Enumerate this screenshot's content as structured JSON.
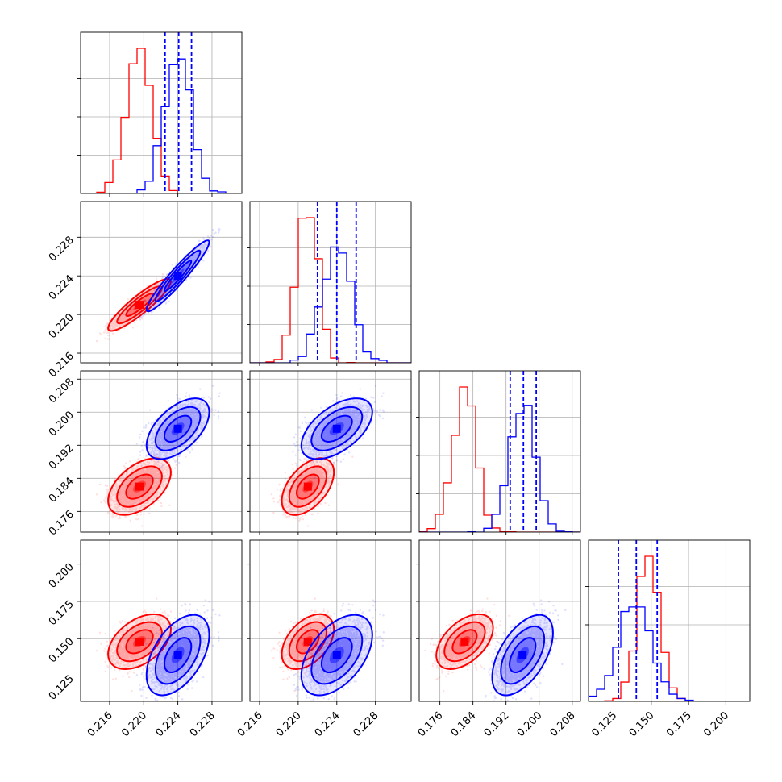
{
  "chart_data": {
    "type": "corner",
    "parameters": [
      {
        "ticks": [
          "0.216",
          "0.220",
          "0.224",
          "0.228"
        ],
        "range": [
          0.2126,
          0.2315
        ]
      },
      {
        "ticks": [
          "0.216",
          "0.220",
          "0.224",
          "0.228"
        ],
        "range": [
          0.215,
          0.2317
        ]
      },
      {
        "ticks": [
          "0.176",
          "0.184",
          "0.192",
          "0.200",
          "0.208"
        ],
        "range": [
          0.171,
          0.21
        ]
      },
      {
        "ticks": [
          "0.125",
          "0.150",
          "0.175",
          "0.200"
        ],
        "range": [
          0.108,
          0.216
        ]
      }
    ],
    "series": [
      {
        "color": "#ff0000",
        "means": [
          0.2195,
          0.221,
          0.182,
          0.148
        ],
        "sds": [
          0.0015,
          0.0011,
          0.0028,
          0.0075
        ],
        "corr": [
          [
            1,
            0.9,
            0.5,
            0.45
          ],
          [
            0.9,
            1,
            0.5,
            0.45
          ],
          [
            0.5,
            0.5,
            1,
            0.5
          ],
          [
            0.45,
            0.45,
            0.5,
            1
          ]
        ]
      },
      {
        "color": "#0000ff",
        "means": [
          0.224,
          0.224,
          0.196,
          0.139
        ],
        "sds": [
          0.0015,
          0.0015,
          0.003,
          0.011
        ],
        "corr": [
          [
            1,
            0.95,
            0.55,
            0.5
          ],
          [
            0.95,
            1,
            0.55,
            0.5
          ],
          [
            0.55,
            0.55,
            1,
            0.55
          ],
          [
            0.5,
            0.5,
            0.55,
            1
          ]
        ]
      }
    ],
    "quantiles": {
      "color": "#0000ff",
      "values": [
        [
          0.2225,
          0.2241,
          0.2256
        ],
        [
          0.222,
          0.224,
          0.226
        ],
        [
          0.193,
          0.1962,
          0.1993
        ],
        [
          0.128,
          0.14,
          0.154
        ]
      ]
    },
    "grid": true
  }
}
